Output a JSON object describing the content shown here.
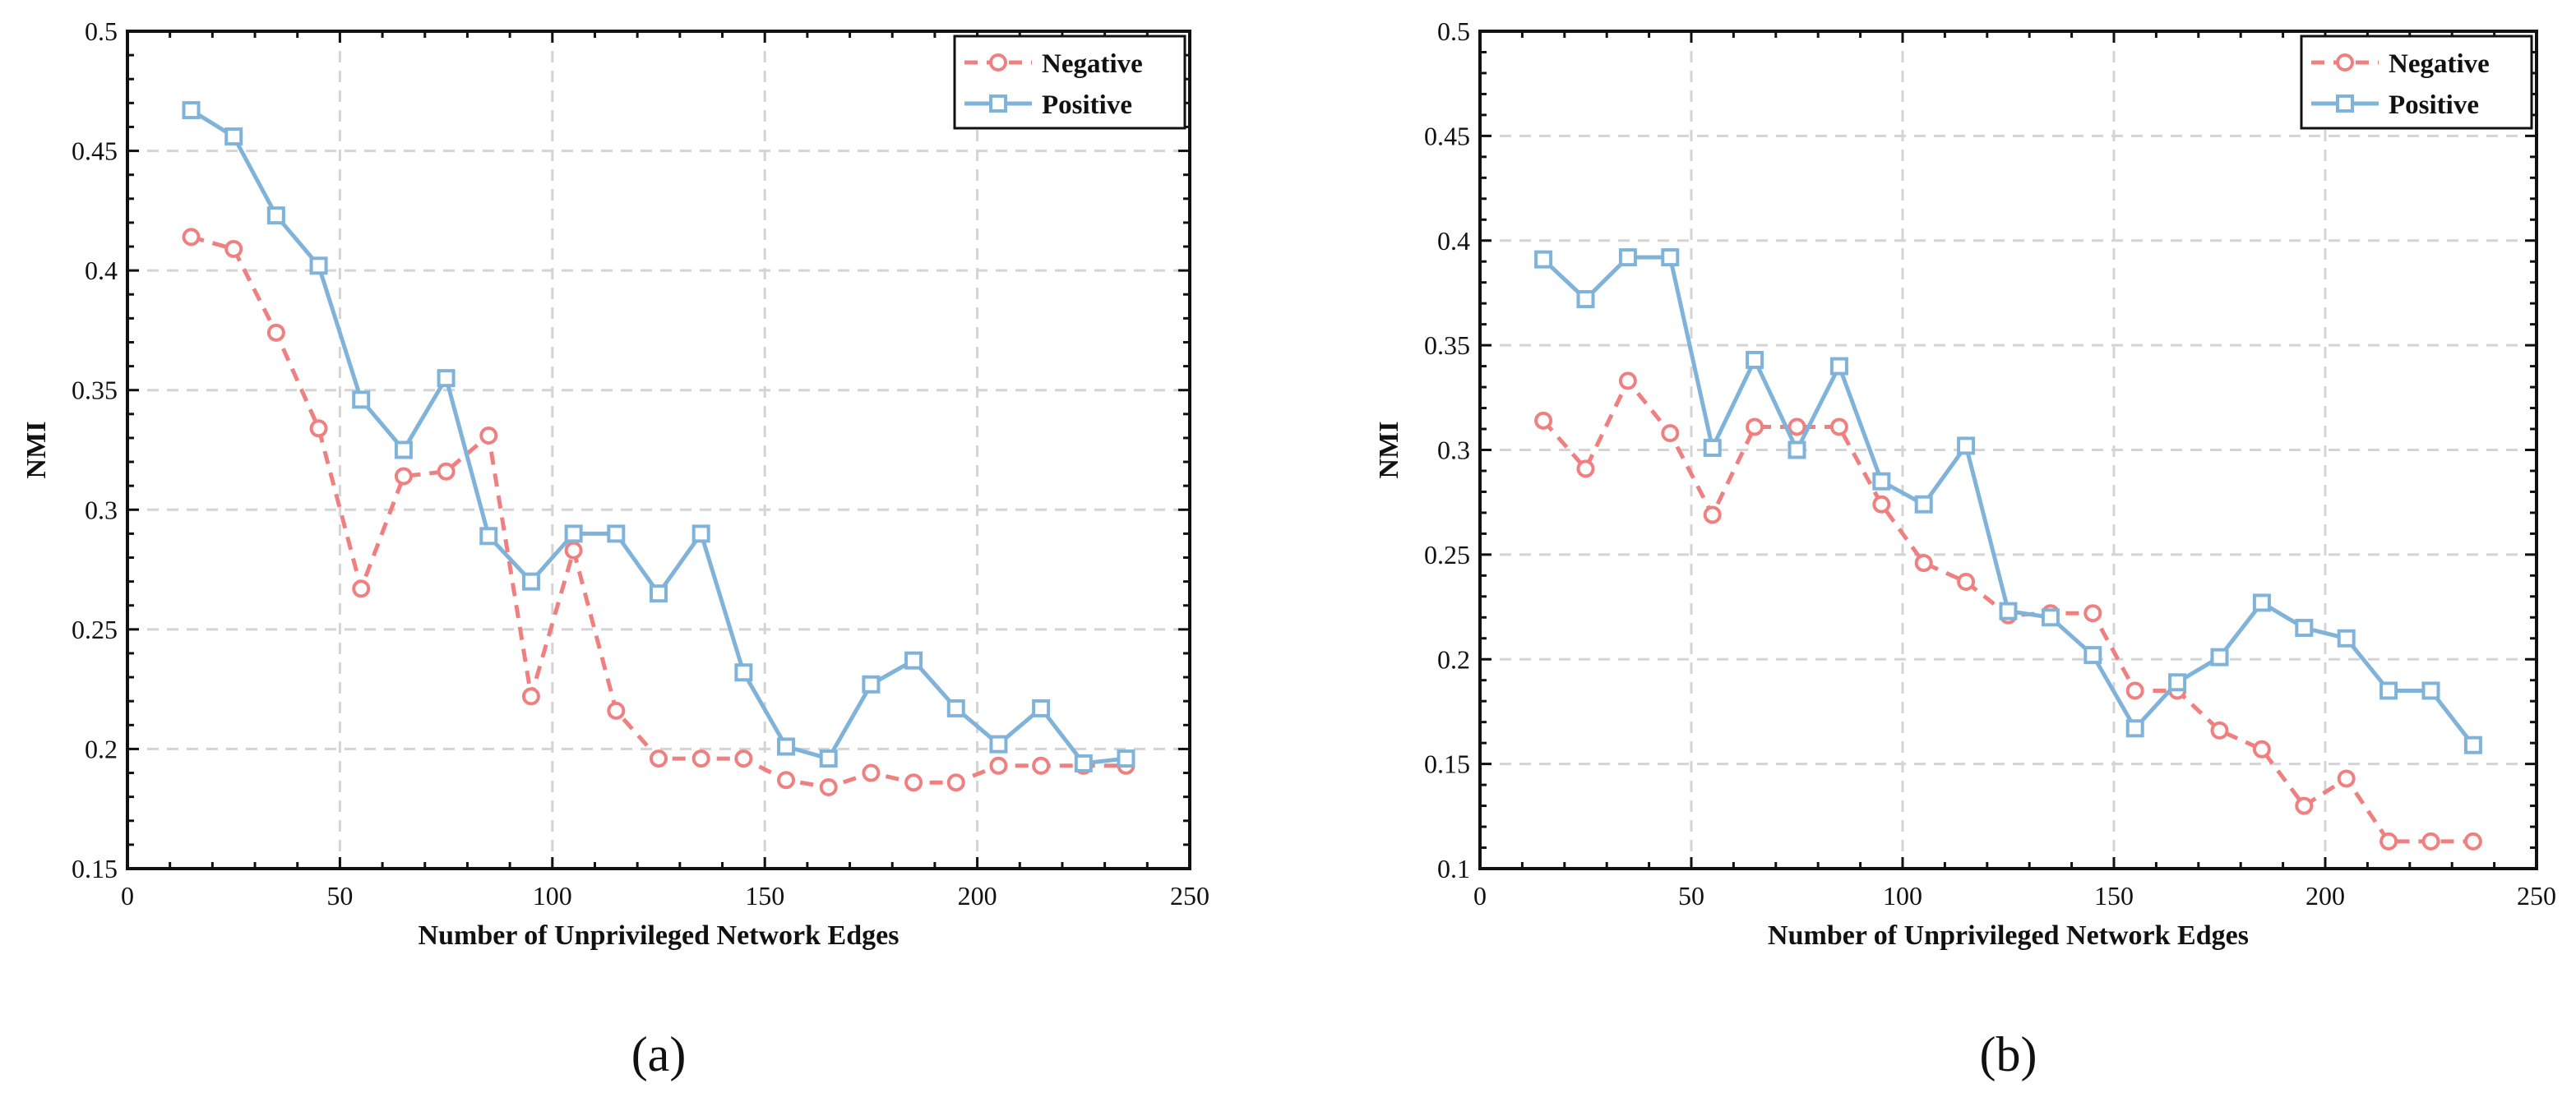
{
  "chart_data": [
    {
      "type": "line",
      "panel_label": "(a)",
      "xlabel": "Number of Unprivileged Network Edges",
      "ylabel": "NMI",
      "xlim": [
        0,
        250
      ],
      "ylim": [
        0.15,
        0.5
      ],
      "xticks": [
        0,
        50,
        100,
        150,
        200,
        250
      ],
      "xtick_labels": [
        "0",
        "50",
        "100",
        "150",
        "200",
        "250"
      ],
      "yticks": [
        0.15,
        0.2,
        0.25,
        0.3,
        0.35,
        0.4,
        0.45,
        0.5
      ],
      "ytick_labels": [
        "0.15",
        "0.2",
        "0.25",
        "0.3",
        "0.35",
        "0.4",
        "0.45",
        "0.5"
      ],
      "grid": true,
      "legend_position": "top-right",
      "x": [
        15,
        25,
        35,
        45,
        55,
        65,
        75,
        85,
        95,
        105,
        115,
        125,
        135,
        145,
        155,
        165,
        175,
        185,
        195,
        205,
        215,
        225,
        235
      ],
      "series": [
        {
          "name": "Negative",
          "color": "#f08080",
          "style": "dashed",
          "marker": "circle",
          "values": [
            0.414,
            0.409,
            0.374,
            0.334,
            0.267,
            0.314,
            0.316,
            0.331,
            0.222,
            0.283,
            0.216,
            0.196,
            0.196,
            0.196,
            0.187,
            0.184,
            0.19,
            0.186,
            0.186,
            0.193,
            0.193,
            0.193,
            0.193
          ]
        },
        {
          "name": "Positive",
          "color": "#7fb3d9",
          "style": "solid",
          "marker": "square",
          "values": [
            0.467,
            0.456,
            0.423,
            0.402,
            0.346,
            0.325,
            0.355,
            0.289,
            0.27,
            0.29,
            0.29,
            0.265,
            0.29,
            0.232,
            0.201,
            0.196,
            0.227,
            0.237,
            0.217,
            0.202,
            0.217,
            0.194,
            0.196
          ]
        }
      ]
    },
    {
      "type": "line",
      "panel_label": "(b)",
      "xlabel": "Number of Unprivileged Network Edges",
      "ylabel": "NMI",
      "xlim": [
        0,
        250
      ],
      "ylim": [
        0.1,
        0.5
      ],
      "xticks": [
        0,
        50,
        100,
        150,
        200,
        250
      ],
      "xtick_labels": [
        "0",
        "50",
        "100",
        "150",
        "200",
        "250"
      ],
      "yticks": [
        0.1,
        0.15,
        0.2,
        0.25,
        0.3,
        0.35,
        0.4,
        0.45,
        0.5
      ],
      "ytick_labels": [
        "0.1",
        "0.15",
        "0.2",
        "0.25",
        "0.3",
        "0.35",
        "0.4",
        "0.45",
        "0.5"
      ],
      "grid": true,
      "legend_position": "top-right",
      "x": [
        15,
        25,
        35,
        45,
        55,
        65,
        75,
        85,
        95,
        105,
        115,
        125,
        135,
        145,
        155,
        165,
        175,
        185,
        195,
        205,
        215,
        225,
        235
      ],
      "series": [
        {
          "name": "Negative",
          "color": "#f08080",
          "style": "dashed",
          "marker": "circle",
          "values": [
            0.314,
            0.291,
            0.333,
            0.308,
            0.269,
            0.311,
            0.311,
            0.311,
            0.274,
            0.246,
            0.237,
            0.221,
            0.222,
            0.222,
            0.185,
            0.185,
            0.166,
            0.157,
            0.13,
            0.143,
            0.113,
            0.113,
            0.113
          ]
        },
        {
          "name": "Positive",
          "color": "#7fb3d9",
          "style": "solid",
          "marker": "square",
          "values": [
            0.391,
            0.372,
            0.392,
            0.392,
            0.301,
            0.343,
            0.3,
            0.34,
            0.285,
            0.274,
            0.302,
            0.223,
            0.22,
            0.202,
            0.167,
            0.189,
            0.201,
            0.227,
            0.215,
            0.21,
            0.185,
            0.185,
            0.159
          ]
        }
      ]
    }
  ]
}
